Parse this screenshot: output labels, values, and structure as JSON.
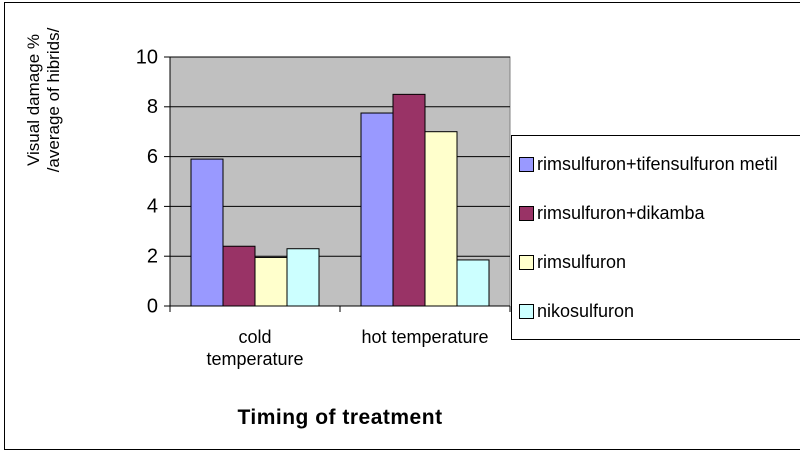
{
  "chart_data": {
    "type": "bar",
    "xlabel": "Timing of treatment",
    "ylabel": "Visual damage % /average of hibrids/",
    "categories": [
      "cold temperature",
      "hot temperature"
    ],
    "series": [
      {
        "name": "rimsulfuron+tifensulfuron metil",
        "color": "#9999ff",
        "values": [
          5.9,
          7.75
        ]
      },
      {
        "name": "rimsulfuron+dikamba",
        "color": "#993366",
        "values": [
          2.4,
          8.5
        ]
      },
      {
        "name": "rimsulfuron",
        "color": "#ffffcc",
        "values": [
          1.95,
          7.0
        ]
      },
      {
        "name": "nikosulfuron",
        "color": "#ccffff",
        "values": [
          2.3,
          1.85
        ]
      }
    ],
    "ylim": [
      0,
      10
    ],
    "yticks": [
      0,
      2,
      4,
      6,
      8,
      10
    ],
    "grid": true,
    "plot_background": "#c0c0c0",
    "legend": "right"
  }
}
